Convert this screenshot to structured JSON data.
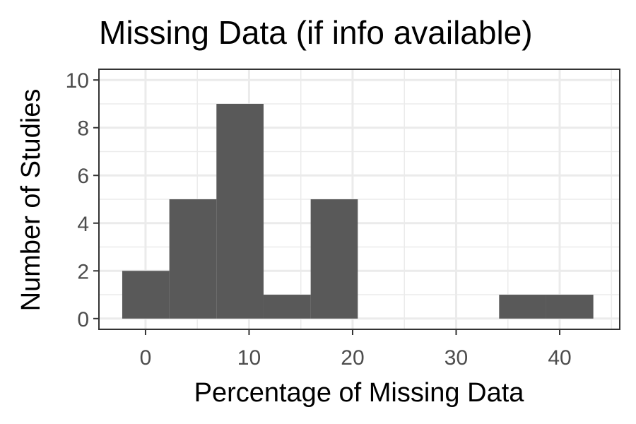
{
  "chart_data": {
    "type": "bar",
    "title": "Missing Data (if info available)",
    "xlabel": "Percentage of Missing Data",
    "ylabel": "Number of Studies",
    "xlim": [
      -4.5,
      45.8
    ],
    "ylim": [
      -0.45,
      10.45
    ],
    "xticks": [
      0,
      10,
      20,
      30,
      40
    ],
    "yticks": [
      0,
      2,
      4,
      6,
      8,
      10
    ],
    "grid": true,
    "bins": [
      {
        "x0": -2.25,
        "x1": 2.3,
        "count": 2
      },
      {
        "x0": 2.3,
        "x1": 6.85,
        "count": 5
      },
      {
        "x0": 6.85,
        "x1": 11.4,
        "count": 9
      },
      {
        "x0": 11.4,
        "x1": 15.95,
        "count": 1
      },
      {
        "x0": 15.95,
        "x1": 20.5,
        "count": 5
      },
      {
        "x0": 20.5,
        "x1": 25.05,
        "count": 0
      },
      {
        "x0": 25.05,
        "x1": 29.6,
        "count": 0
      },
      {
        "x0": 29.6,
        "x1": 34.15,
        "count": 0
      },
      {
        "x0": 34.15,
        "x1": 38.7,
        "count": 1
      },
      {
        "x0": 38.7,
        "x1": 43.25,
        "count": 1
      }
    ],
    "colors": {
      "bar": "#595959",
      "grid": "#ebebeb",
      "panel_border": "#333333"
    }
  }
}
